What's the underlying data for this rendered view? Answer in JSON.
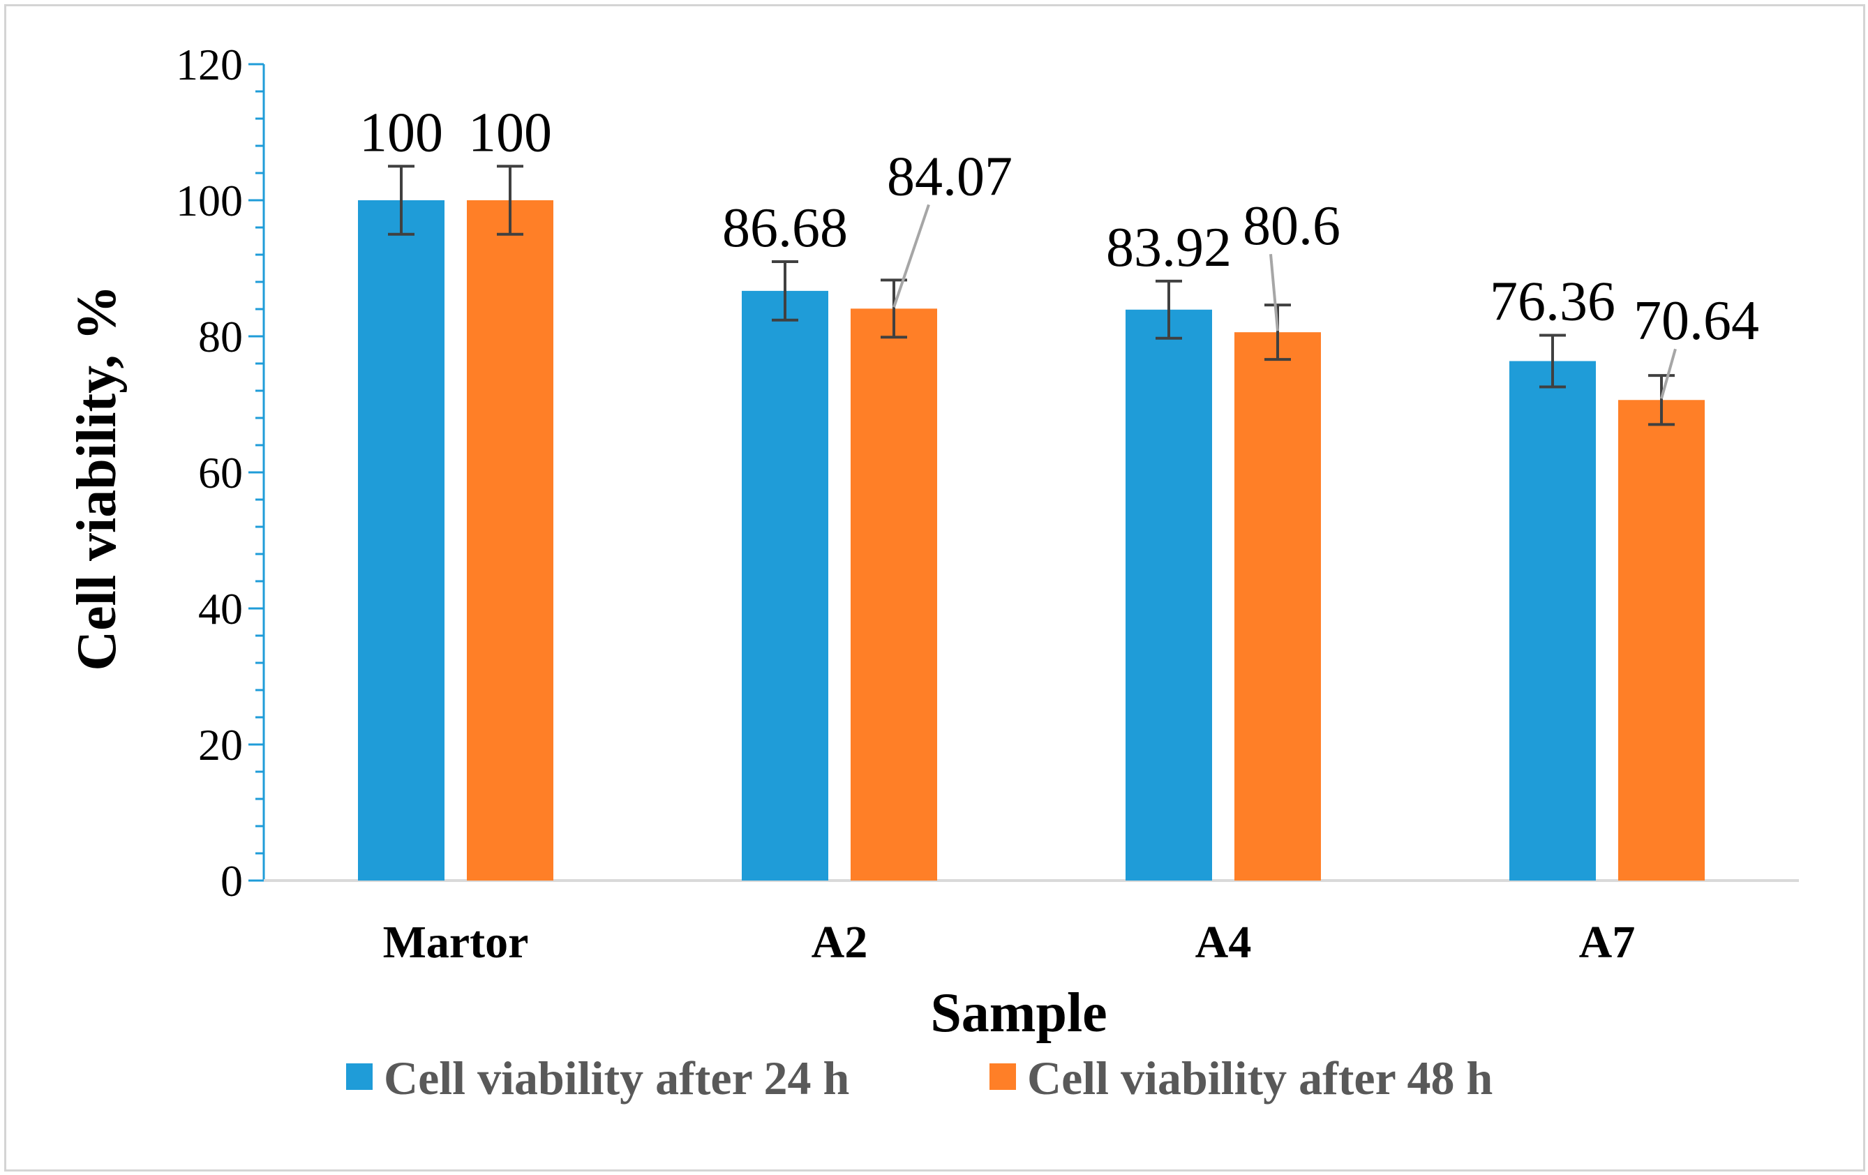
{
  "chart_data": {
    "type": "bar",
    "categories": [
      "Martor",
      "A2",
      "A4",
      "A7"
    ],
    "series": [
      {
        "name": "Cell viability after 24 h",
        "color": "#1F9CD8",
        "values": [
          100,
          86.68,
          83.92,
          76.36
        ],
        "labels": [
          "100",
          "86.68",
          "83.92",
          "76.36"
        ],
        "error": [
          5,
          4.3,
          4.2,
          3.8
        ]
      },
      {
        "name": "Cell viability after 48 h",
        "color": "#FF7F27",
        "values": [
          100,
          84.07,
          80.6,
          70.64
        ],
        "labels": [
          "100",
          "84.07",
          "80.6",
          "70.64"
        ],
        "error": [
          5,
          4.2,
          4.0,
          3.6
        ]
      }
    ],
    "title": "",
    "xlabel": "Sample",
    "ylabel": "Cell viability, %",
    "ylim": [
      0,
      120
    ],
    "yticks": [
      0,
      20,
      40,
      60,
      80,
      100,
      120
    ],
    "ytick_labels": [
      "0",
      "20",
      "40",
      "60",
      "80",
      "100",
      "120"
    ],
    "grid": false,
    "legend": "bottom",
    "axis_color": "#1F9CD8",
    "error_bar_color": "#404040"
  }
}
